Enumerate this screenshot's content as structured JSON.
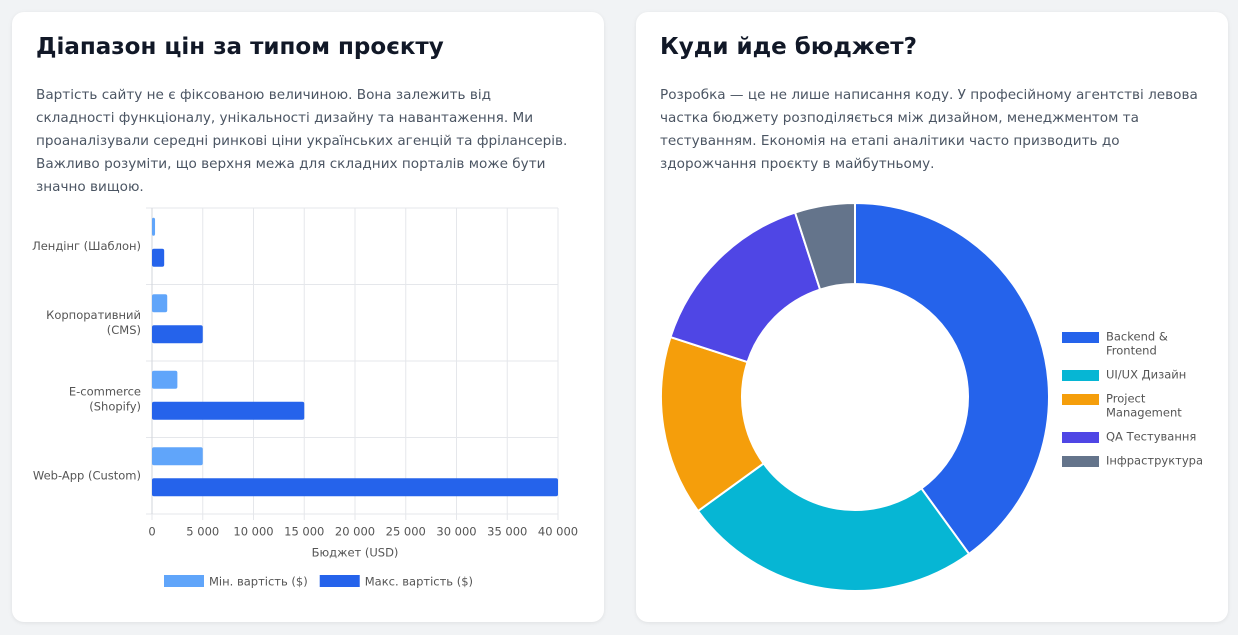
{
  "panels": [
    {
      "title": "Діапазон цін за типом проєкту",
      "text": "Вартість сайту не є фіксованою величиною. Вона залежить від складності функціоналу, унікальності дизайну та навантаження. Ми проаналізували середні ринкові ціни українських агенцій та фрілансерів. Важливо розуміти, що верхня межа для складних порталів може бути значно вищою."
    },
    {
      "title": "Куди йде бюджет?",
      "text": "Розробка — це не лише написання коду. У професійному агентстві левова частка бюджету розподіляється між дизайном, менеджментом та тестуванням. Економія на етапі аналітики часто призводить до здорожчання проєкту в майбутньому."
    }
  ],
  "chart_data": [
    {
      "type": "hbar",
      "x_label": "Бюджет (USD)",
      "categories": [
        [
          "Лендінг (Шаблон)"
        ],
        [
          "Корпоративний",
          "(CMS)"
        ],
        [
          "E-commerce",
          "(Shopify)"
        ],
        [
          "Web-App (Custom)"
        ]
      ],
      "series": [
        {
          "name": "Мін. вартість ($)",
          "color": "#60a5fa",
          "values": [
            300,
            1500,
            2500,
            5000
          ]
        },
        {
          "name": "Макс. вартість ($)",
          "color": "#2563eb",
          "values": [
            1200,
            5000,
            15000,
            40000
          ]
        }
      ],
      "xlim": [
        0,
        40000
      ],
      "xticks": [
        0,
        {
          "value": 5000,
          "label": "5 000"
        },
        {
          "value": 10000,
          "label": "10 000"
        },
        {
          "value": 15000,
          "label": "15 000"
        },
        {
          "value": 20000,
          "label": "20 000"
        },
        {
          "value": 25000,
          "label": "25 000"
        },
        {
          "value": 30000,
          "label": "30 000"
        },
        {
          "value": 35000,
          "label": "35 000"
        },
        {
          "value": 40000,
          "label": "40 000"
        }
      ],
      "grid": true,
      "legend": "bottom"
    },
    {
      "type": "doughnut",
      "categories": [
        [
          "Backend &",
          "Frontend"
        ],
        [
          "UI/UX Дизайн"
        ],
        [
          "Project",
          "Management"
        ],
        [
          "QA Тестування"
        ],
        [
          "Інфраструктура"
        ]
      ],
      "values": [
        40,
        25,
        15,
        15,
        5
      ],
      "colors": [
        "#2563eb",
        "#06b6d4",
        "#f59e0b",
        "#4f46e5",
        "#64748b"
      ],
      "legend": "right"
    }
  ]
}
